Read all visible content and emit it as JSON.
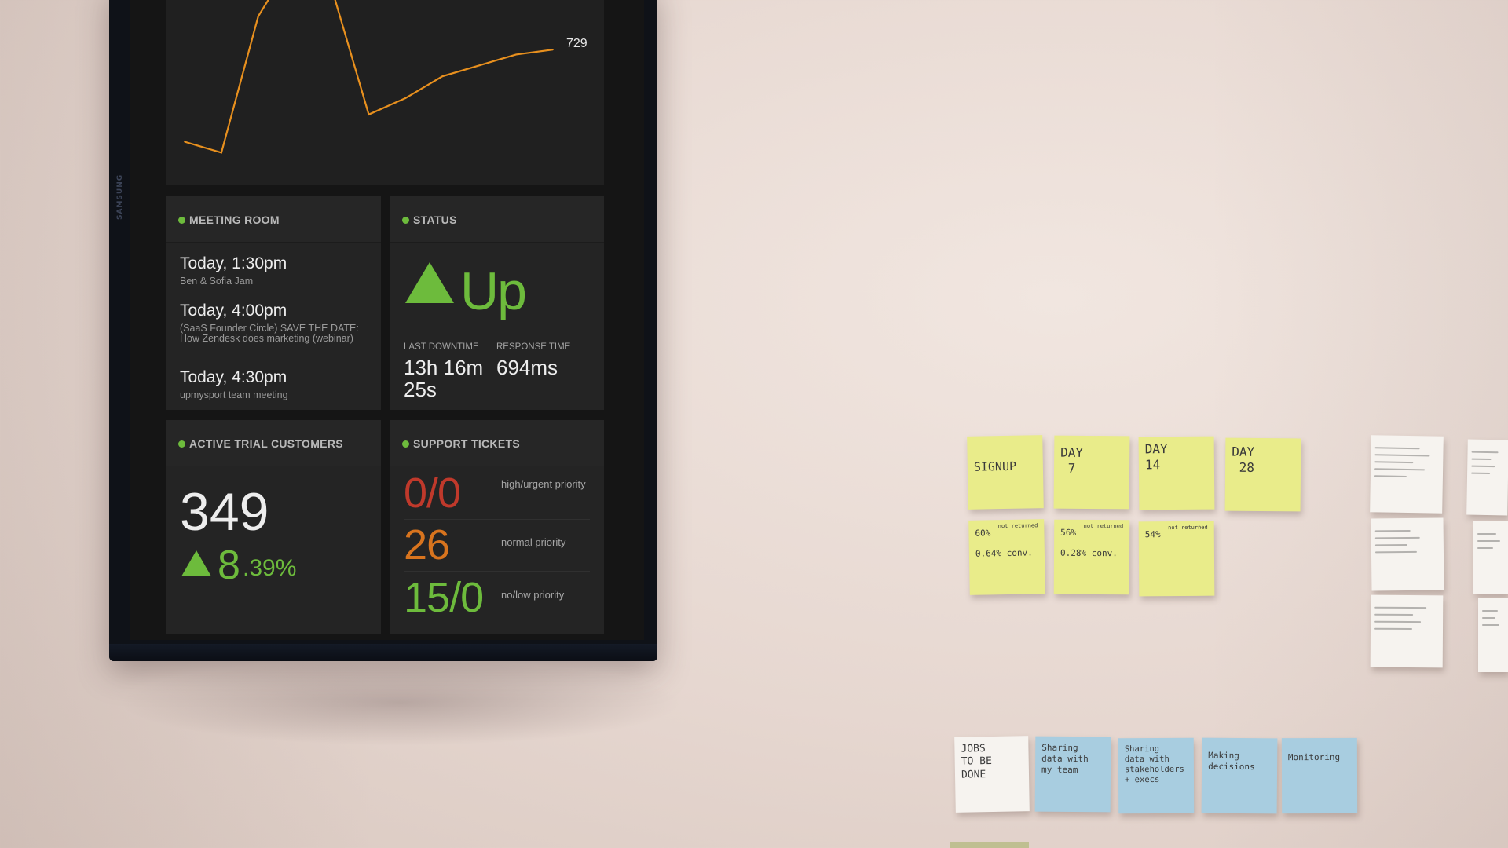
{
  "brand": "SAMSUNG",
  "chart": {
    "last_value_label": "729"
  },
  "chart_data": {
    "type": "line",
    "title": "",
    "xlabel": "",
    "ylabel": "",
    "series": [
      {
        "values": [
          560,
          540,
          790,
          900,
          840,
          610,
          640,
          680,
          700,
          720,
          729
        ]
      }
    ],
    "ylim": [
      480,
      820
    ],
    "grid": false,
    "color": "#e8901e"
  },
  "meeting_room": {
    "title": "MEETING ROOM",
    "events": [
      {
        "time": "Today, 1:30pm",
        "desc": "Ben & Sofia Jam"
      },
      {
        "time": "Today, 4:00pm",
        "desc": "(SaaS Founder Circle) SAVE THE DATE: How Zendesk does marketing (webinar)"
      },
      {
        "time": "Today, 4:30pm",
        "desc": "upmysport team meeting"
      }
    ]
  },
  "status": {
    "title": "STATUS",
    "state": "Up",
    "last_downtime_label": "LAST DOWNTIME",
    "last_downtime_value": "13h 16m 25s",
    "response_time_label": "RESPONSE TIME",
    "response_time_value": "694ms"
  },
  "active_trial": {
    "title": "ACTIVE TRIAL CUSTOMERS",
    "count": "349",
    "change_int": "8",
    "change_frac": ".39%"
  },
  "support_tickets": {
    "title": "SUPPORT TICKETS",
    "rows": [
      {
        "value": "0/0",
        "label": "high/urgent priority",
        "color": "#c0392b"
      },
      {
        "value": "26",
        "label": "normal priority",
        "color": "#d8741e"
      },
      {
        "value": "15/0",
        "label": "no/low priority",
        "color": "#6dbb3c"
      }
    ]
  },
  "colors": {
    "accent_green": "#6dbb3c",
    "line_orange": "#e8901e"
  },
  "sticky_notes": {
    "stage_headers": [
      "SIGNUP",
      "DAY\n 7",
      "DAY\n14",
      "DAY\n 28"
    ],
    "stage_results": [
      {
        "main": "60%",
        "top": "not returned",
        "second": "0.64% conv."
      },
      {
        "main": "56%",
        "top": "not returned",
        "second": "0.28% conv."
      },
      {
        "main": "54%",
        "top": "not returned",
        "second": ""
      }
    ],
    "jobs": [
      "JOBS\nTO BE\nDONE",
      "Sharing\ndata with\nmy team",
      "Sharing\ndata with\nstakeholders\n+ execs",
      "Making\ndecisions",
      "Monitoring"
    ]
  }
}
